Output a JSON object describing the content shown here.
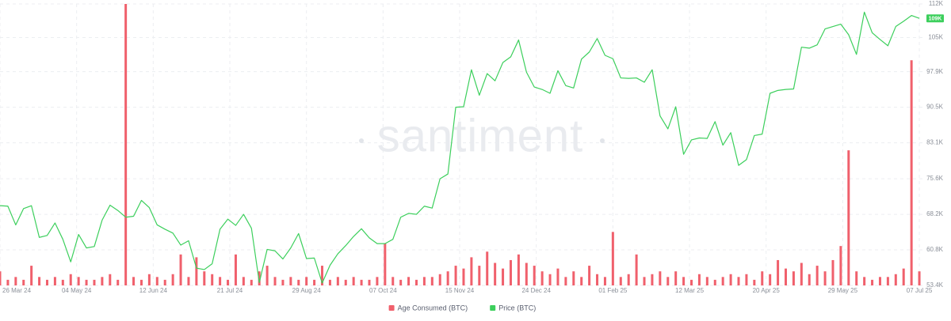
{
  "chart_data": {
    "type": "combo",
    "watermark": "santiment",
    "x": [
      "2024-03-26",
      "2024-03-30",
      "2024-04-03",
      "2024-04-07",
      "2024-04-11",
      "2024-04-15",
      "2024-04-19",
      "2024-04-23",
      "2024-04-27",
      "2024-05-01",
      "2024-05-05",
      "2024-05-09",
      "2024-05-13",
      "2024-05-17",
      "2024-05-21",
      "2024-05-25",
      "2024-05-29",
      "2024-06-02",
      "2024-06-06",
      "2024-06-10",
      "2024-06-14",
      "2024-06-18",
      "2024-06-22",
      "2024-06-26",
      "2024-06-30",
      "2024-07-04",
      "2024-07-08",
      "2024-07-12",
      "2024-07-16",
      "2024-07-20",
      "2024-07-24",
      "2024-07-28",
      "2024-08-01",
      "2024-08-05",
      "2024-08-09",
      "2024-08-13",
      "2024-08-17",
      "2024-08-21",
      "2024-08-25",
      "2024-08-29",
      "2024-09-02",
      "2024-09-06",
      "2024-09-10",
      "2024-09-14",
      "2024-09-18",
      "2024-09-22",
      "2024-09-26",
      "2024-09-30",
      "2024-10-04",
      "2024-10-08",
      "2024-10-12",
      "2024-10-16",
      "2024-10-20",
      "2024-10-24",
      "2024-10-28",
      "2024-11-01",
      "2024-11-05",
      "2024-11-09",
      "2024-11-13",
      "2024-11-17",
      "2024-11-21",
      "2024-11-25",
      "2024-11-29",
      "2024-12-03",
      "2024-12-07",
      "2024-12-11",
      "2024-12-15",
      "2024-12-19",
      "2024-12-23",
      "2024-12-27",
      "2024-12-31",
      "2025-01-04",
      "2025-01-08",
      "2025-01-12",
      "2025-01-16",
      "2025-01-20",
      "2025-01-24",
      "2025-01-28",
      "2025-02-01",
      "2025-02-05",
      "2025-02-09",
      "2025-02-13",
      "2025-02-17",
      "2025-02-21",
      "2025-02-25",
      "2025-03-01",
      "2025-03-05",
      "2025-03-09",
      "2025-03-13",
      "2025-03-17",
      "2025-03-21",
      "2025-03-25",
      "2025-03-29",
      "2025-04-02",
      "2025-04-06",
      "2025-04-10",
      "2025-04-14",
      "2025-04-18",
      "2025-04-22",
      "2025-04-26",
      "2025-04-30",
      "2025-05-04",
      "2025-05-08",
      "2025-05-12",
      "2025-05-16",
      "2025-05-20",
      "2025-05-24",
      "2025-05-28",
      "2025-06-01",
      "2025-06-05",
      "2025-06-09",
      "2025-06-13",
      "2025-06-17",
      "2025-06-21",
      "2025-06-25",
      "2025-06-29",
      "2025-07-03",
      "2025-07-07"
    ],
    "xlim": [
      "2024-03-26",
      "2025-07-09"
    ],
    "xticks": [
      {
        "value": "2024-03-26",
        "label": "26 Mar 24"
      },
      {
        "value": "2024-05-04",
        "label": "04 May 24"
      },
      {
        "value": "2024-06-12",
        "label": "12 Jun 24"
      },
      {
        "value": "2024-07-21",
        "label": "21 Jul 24"
      },
      {
        "value": "2024-08-29",
        "label": "29 Aug 24"
      },
      {
        "value": "2024-10-07",
        "label": "07 Oct 24"
      },
      {
        "value": "2024-11-15",
        "label": "15 Nov 24"
      },
      {
        "value": "2024-12-24",
        "label": "24 Dec 24"
      },
      {
        "value": "2025-02-01",
        "label": "01 Feb 25"
      },
      {
        "value": "2025-03-12",
        "label": "12 Mar 25"
      },
      {
        "value": "2025-04-20",
        "label": "20 Apr 25"
      },
      {
        "value": "2025-05-29",
        "label": "29 May 25"
      },
      {
        "value": "2025-07-07",
        "label": "07 Jul 25"
      }
    ],
    "ylim": [
      53400,
      112000
    ],
    "yticks": [
      {
        "value": 53400,
        "label": "53.4K"
      },
      {
        "value": 60800,
        "label": "60.8K"
      },
      {
        "value": 68200,
        "label": "68.2K"
      },
      {
        "value": 75600,
        "label": "75.6K"
      },
      {
        "value": 83100,
        "label": "83.1K"
      },
      {
        "value": 90500,
        "label": "90.5K"
      },
      {
        "value": 97900,
        "label": "97.9K"
      },
      {
        "value": 105000,
        "label": "105K"
      },
      {
        "value": 112000,
        "label": "112K"
      }
    ],
    "y_axis_side": "right",
    "y2lim": [
      0,
      100
    ],
    "grid": true,
    "legend": "bottom",
    "series": [
      {
        "name": "Age Consumed (BTC)",
        "type": "bar",
        "axis": "y2",
        "color": "#f0606c",
        "values": [
          5,
          2,
          3,
          2,
          7,
          3,
          2,
          3,
          2,
          4,
          3,
          2,
          2,
          3,
          4,
          2,
          100,
          3,
          2,
          4,
          3,
          2,
          4,
          11,
          3,
          10,
          5,
          4,
          3,
          2,
          11,
          3,
          2,
          5,
          7,
          3,
          2,
          3,
          2,
          3,
          2,
          7,
          2,
          3,
          2,
          3,
          2,
          2,
          3,
          15,
          3,
          2,
          3,
          2,
          3,
          3,
          4,
          5,
          7,
          6,
          10,
          7,
          12,
          8,
          6,
          9,
          11,
          8,
          7,
          5,
          4,
          6,
          3,
          5,
          3,
          7,
          4,
          3,
          19,
          3,
          4,
          11,
          3,
          4,
          5,
          3,
          5,
          3,
          2,
          4,
          3,
          2,
          3,
          4,
          3,
          4,
          2,
          5,
          4,
          9,
          6,
          5,
          8,
          4,
          7,
          5,
          9,
          14,
          48,
          5,
          3,
          2,
          3,
          3,
          4,
          6,
          80,
          5
        ]
      },
      {
        "name": "Price (BTC)",
        "type": "line",
        "axis": "y",
        "color": "#3ccf5c",
        "values": [
          70000,
          69900,
          66000,
          69400,
          70000,
          63400,
          63800,
          66400,
          63000,
          58300,
          64000,
          61200,
          61500,
          67000,
          70100,
          69000,
          67600,
          67800,
          71100,
          69600,
          66000,
          65100,
          64300,
          61800,
          62700,
          57000,
          56700,
          57900,
          65100,
          67200,
          65900,
          68200,
          65300,
          54000,
          60900,
          60600,
          58900,
          61200,
          64200,
          59000,
          59100,
          53900,
          57600,
          60000,
          61700,
          63600,
          65200,
          63300,
          62100,
          62100,
          63000,
          67600,
          68400,
          68200,
          69900,
          69500,
          75600,
          76600,
          90500,
          90600,
          98300,
          93000,
          97500,
          96000,
          99800,
          101000,
          104500,
          97800,
          94700,
          94200,
          93400,
          98100,
          95000,
          94500,
          100500,
          102000,
          104800,
          101300,
          100600,
          96600,
          96500,
          96600,
          95700,
          98300,
          88700,
          86000,
          90600,
          80700,
          83700,
          84100,
          84000,
          87500,
          82600,
          85200,
          78400,
          79600,
          84600,
          84900,
          93400,
          94000,
          94200,
          94300,
          103000,
          102800,
          103500,
          106800,
          107300,
          107800,
          105600,
          101500,
          110300,
          106000,
          104600,
          103300,
          107300,
          108400,
          109600,
          109000
        ],
        "last_label": "109K"
      }
    ]
  }
}
